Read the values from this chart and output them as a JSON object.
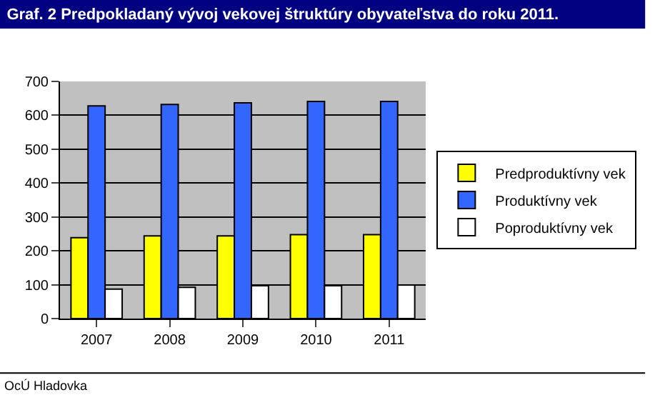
{
  "chart_data": {
    "type": "bar",
    "title": "Graf. 2 Predpokladaný vývoj vekovej štruktúry obyvateľstva do roku 2011.",
    "categories": [
      "2007",
      "2008",
      "2009",
      "2010",
      "2011"
    ],
    "series": [
      {
        "name": "Predproduktívny vek",
        "color": "#ffff00",
        "values": [
          239,
          244,
          244,
          248,
          248
        ]
      },
      {
        "name": "Produktívny vek",
        "color": "#3366ff",
        "values": [
          628,
          632,
          637,
          641,
          641
        ]
      },
      {
        "name": "Poproduktívny vek",
        "color": "#ffffff",
        "values": [
          87,
          92,
          97,
          97,
          99
        ]
      }
    ],
    "ylim": [
      0,
      700
    ],
    "yticks": [
      0,
      100,
      200,
      300,
      400,
      500,
      600,
      700
    ],
    "grid": "y",
    "legend": "right",
    "annotations": [
      "OcÚ Hladovka"
    ]
  }
}
